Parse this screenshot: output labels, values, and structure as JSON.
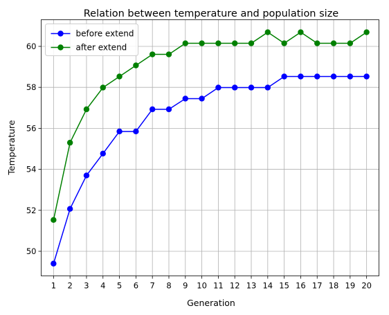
{
  "chart_data": {
    "type": "line",
    "title": "Relation between temperature and population size",
    "xlabel": "Generation",
    "ylabel": "Temperature",
    "x": [
      1,
      2,
      3,
      4,
      5,
      6,
      7,
      8,
      9,
      10,
      11,
      12,
      13,
      14,
      15,
      16,
      17,
      18,
      19,
      20
    ],
    "x_tick_labels": [
      "1",
      "2",
      "3",
      "4",
      "5",
      "6",
      "7",
      "8",
      "9",
      "10",
      "11",
      "12",
      "13",
      "14",
      "15",
      "16",
      "17",
      "18",
      "19",
      "20"
    ],
    "y_ticks": [
      50,
      52,
      54,
      56,
      58,
      60
    ],
    "y_tick_labels": [
      "50",
      "52",
      "54",
      "56",
      "58",
      "60"
    ],
    "xlim": [
      0.25,
      20.75
    ],
    "ylim": [
      48.8,
      61.3
    ],
    "grid": true,
    "legend_position": "top-left",
    "series": [
      {
        "name": "before extend",
        "color": "#0000ff",
        "marker": "circle",
        "values": [
          49.4,
          52.07,
          53.7,
          54.77,
          55.85,
          55.85,
          56.93,
          56.93,
          57.45,
          57.45,
          57.99,
          57.99,
          57.99,
          57.99,
          58.53,
          58.53,
          58.53,
          58.53,
          58.53,
          58.53
        ]
      },
      {
        "name": "after extend",
        "color": "#008000",
        "marker": "circle",
        "values": [
          51.53,
          55.3,
          56.93,
          57.99,
          58.53,
          59.07,
          59.61,
          59.61,
          60.15,
          60.15,
          60.15,
          60.15,
          60.15,
          60.69,
          60.15,
          60.69,
          60.15,
          60.15,
          60.15,
          60.69
        ]
      }
    ]
  }
}
